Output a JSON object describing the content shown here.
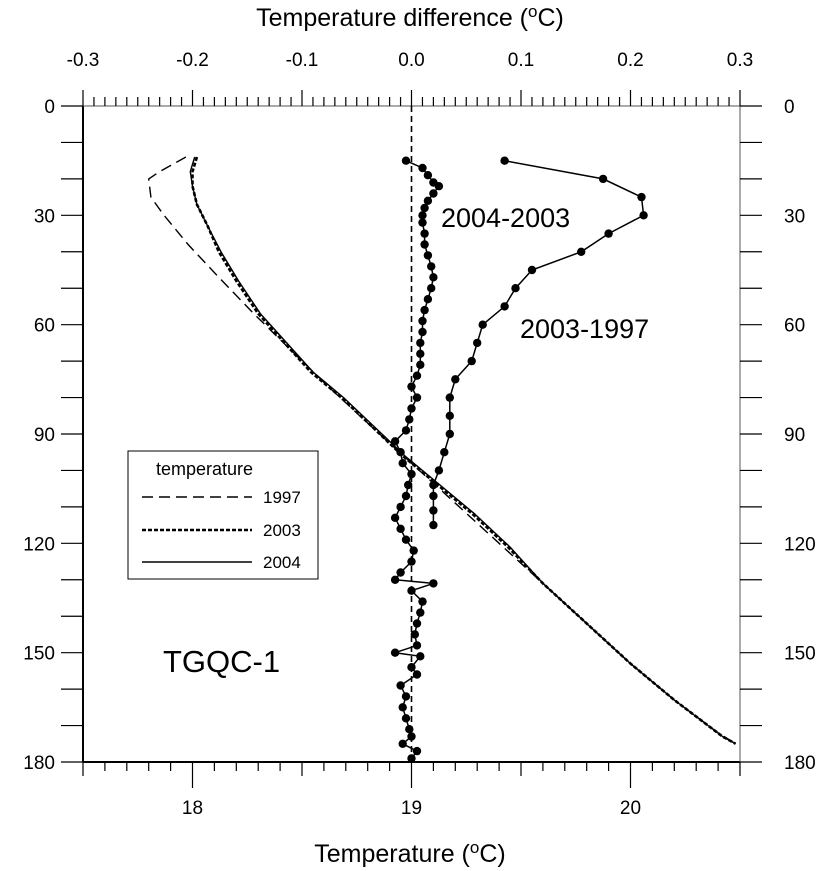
{
  "chart_data": {
    "type": "line",
    "bottom_axis": {
      "label": "Temperature (",
      "unit_sup": "o",
      "unit_end": "C)",
      "range": [
        17.5,
        20.5
      ],
      "ticks": [
        "18",
        "19",
        "20"
      ],
      "tick_values": [
        18,
        19,
        20
      ]
    },
    "top_axis": {
      "label": "Temperature difference (",
      "unit_sup": "o",
      "unit_end": "C)",
      "range": [
        -0.3,
        0.3
      ],
      "ticks": [
        "-0.3",
        "-0.2",
        "-0.1",
        "0.0",
        "0.1",
        "0.2",
        "0.3"
      ],
      "tick_values": [
        -0.3,
        -0.2,
        -0.1,
        0.0,
        0.1,
        0.2,
        0.3
      ]
    },
    "y_axis": {
      "range": [
        0,
        180
      ],
      "inverted": true,
      "ticks": [
        "0",
        "30",
        "60",
        "90",
        "120",
        "150",
        "180"
      ],
      "tick_values": [
        0,
        30,
        60,
        90,
        120,
        150,
        180
      ]
    },
    "legend": {
      "title": "temperature",
      "placement": "center-left",
      "entries": [
        {
          "label": "1997",
          "style": "long-dash"
        },
        {
          "label": "2003",
          "style": "short-dash"
        },
        {
          "label": "2004",
          "style": "solid"
        }
      ]
    },
    "annotations": {
      "series_2004_2003": "2004-2003",
      "series_2003_1997": "2003-1997",
      "well_id": "TGQC-1"
    },
    "temperature_profiles": [
      {
        "name": "1997",
        "style": "long-dash",
        "axis": "bottom",
        "points": [
          [
            17.97,
            14
          ],
          [
            17.85,
            18
          ],
          [
            17.8,
            20
          ],
          [
            17.81,
            25
          ],
          [
            17.87,
            30
          ],
          [
            17.98,
            38
          ],
          [
            18.12,
            47
          ],
          [
            18.28,
            57
          ],
          [
            18.45,
            67
          ],
          [
            18.62,
            77
          ],
          [
            18.8,
            87
          ],
          [
            19.0,
            98
          ],
          [
            19.2,
            109
          ],
          [
            19.4,
            120
          ],
          [
            19.6,
            131
          ],
          [
            19.8,
            142
          ],
          [
            20.0,
            153
          ],
          [
            20.2,
            163
          ],
          [
            20.4,
            172
          ],
          [
            20.48,
            175
          ]
        ]
      },
      {
        "name": "2003",
        "style": "short-dash",
        "axis": "bottom",
        "points": [
          [
            18.02,
            14
          ],
          [
            18.0,
            18
          ],
          [
            18.0,
            22
          ],
          [
            18.02,
            27
          ],
          [
            18.07,
            33
          ],
          [
            18.12,
            40
          ],
          [
            18.2,
            48
          ],
          [
            18.3,
            57
          ],
          [
            18.42,
            65
          ],
          [
            18.54,
            73
          ],
          [
            18.68,
            80
          ],
          [
            18.82,
            88
          ],
          [
            18.96,
            96
          ],
          [
            19.12,
            104
          ],
          [
            19.28,
            112
          ],
          [
            19.44,
            121
          ],
          [
            19.6,
            131
          ],
          [
            19.8,
            142
          ],
          [
            20.0,
            153
          ],
          [
            20.2,
            163
          ],
          [
            20.42,
            173
          ],
          [
            20.48,
            175
          ]
        ]
      },
      {
        "name": "2004",
        "style": "solid",
        "axis": "bottom",
        "points": [
          [
            18.01,
            14
          ],
          [
            17.99,
            18
          ],
          [
            18.0,
            22
          ],
          [
            18.02,
            27
          ],
          [
            18.07,
            33
          ],
          [
            18.13,
            40
          ],
          [
            18.21,
            48
          ],
          [
            18.31,
            57
          ],
          [
            18.43,
            65
          ],
          [
            18.55,
            73
          ],
          [
            18.69,
            80
          ],
          [
            18.83,
            88
          ],
          [
            18.97,
            96
          ],
          [
            19.13,
            104
          ],
          [
            19.29,
            112
          ],
          [
            19.45,
            121
          ],
          [
            19.6,
            131
          ],
          [
            19.8,
            142
          ],
          [
            20.0,
            153
          ],
          [
            20.2,
            163
          ],
          [
            20.42,
            173
          ],
          [
            20.48,
            175
          ]
        ]
      }
    ],
    "difference_profiles": [
      {
        "name": "2004-2003",
        "axis": "top",
        "points": [
          [
            -0.005,
            15
          ],
          [
            0.01,
            17
          ],
          [
            0.015,
            19
          ],
          [
            0.02,
            21
          ],
          [
            0.025,
            22
          ],
          [
            0.02,
            24
          ],
          [
            0.015,
            26
          ],
          [
            0.012,
            28
          ],
          [
            0.01,
            30
          ],
          [
            0.01,
            32
          ],
          [
            0.012,
            35
          ],
          [
            0.012,
            38
          ],
          [
            0.015,
            41
          ],
          [
            0.018,
            44
          ],
          [
            0.02,
            47
          ],
          [
            0.018,
            50
          ],
          [
            0.015,
            53
          ],
          [
            0.012,
            56
          ],
          [
            0.01,
            59
          ],
          [
            0.01,
            62
          ],
          [
            0.008,
            65
          ],
          [
            0.008,
            68
          ],
          [
            0.008,
            71
          ],
          [
            0.005,
            74
          ],
          [
            0.0,
            77
          ],
          [
            0.005,
            80
          ],
          [
            0.0,
            83
          ],
          [
            -0.002,
            86
          ],
          [
            -0.005,
            89
          ],
          [
            -0.015,
            92
          ],
          [
            -0.01,
            95
          ],
          [
            -0.008,
            98
          ],
          [
            0.0,
            101
          ],
          [
            -0.003,
            104
          ],
          [
            -0.005,
            107
          ],
          [
            -0.01,
            110
          ],
          [
            -0.015,
            113
          ],
          [
            -0.01,
            116
          ],
          [
            -0.005,
            119
          ],
          [
            0.002,
            122
          ],
          [
            0.0,
            125
          ],
          [
            -0.01,
            128
          ],
          [
            -0.015,
            130
          ],
          [
            0.02,
            131
          ],
          [
            0.0,
            133
          ],
          [
            0.01,
            136
          ],
          [
            0.008,
            139
          ],
          [
            0.005,
            142
          ],
          [
            0.003,
            145
          ],
          [
            0.005,
            148
          ],
          [
            -0.015,
            150
          ],
          [
            0.008,
            151
          ],
          [
            0.0,
            154
          ],
          [
            0.005,
            156
          ],
          [
            -0.01,
            159
          ],
          [
            -0.005,
            162
          ],
          [
            -0.008,
            165
          ],
          [
            -0.005,
            168
          ],
          [
            -0.002,
            171
          ],
          [
            0.0,
            173
          ],
          [
            -0.008,
            175
          ],
          [
            0.005,
            177
          ],
          [
            0.0,
            179
          ]
        ]
      },
      {
        "name": "2003-1997",
        "axis": "top",
        "points": [
          [
            0.085,
            15
          ],
          [
            0.175,
            20
          ],
          [
            0.21,
            25
          ],
          [
            0.212,
            30
          ],
          [
            0.18,
            35
          ],
          [
            0.155,
            40
          ],
          [
            0.11,
            45
          ],
          [
            0.095,
            50
          ],
          [
            0.085,
            55
          ],
          [
            0.065,
            60
          ],
          [
            0.06,
            65
          ],
          [
            0.055,
            70
          ],
          [
            0.04,
            75
          ],
          [
            0.035,
            80
          ],
          [
            0.035,
            85
          ],
          [
            0.035,
            90
          ],
          [
            0.03,
            95
          ],
          [
            0.025,
            100
          ],
          [
            0.02,
            104
          ],
          [
            0.02,
            107
          ],
          [
            0.02,
            111
          ],
          [
            0.02,
            115
          ]
        ]
      }
    ]
  }
}
